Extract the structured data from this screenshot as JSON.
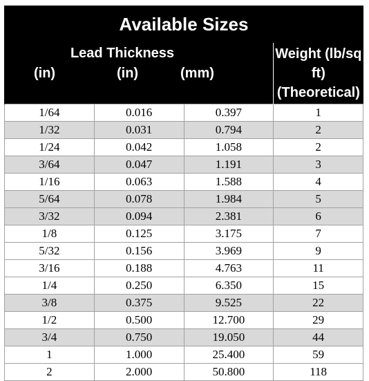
{
  "title": "Available Sizes",
  "header": {
    "group_label": "Lead Thickness",
    "col_frac": "(in)",
    "col_in": "(in)",
    "col_mm": "(mm)",
    "weight_line1": "Weight (lb/sq ft)",
    "weight_line2": "(Theoretical)"
  },
  "rows": [
    {
      "frac": "1/64",
      "inch": "0.016",
      "mm": "0.397",
      "weight": "1"
    },
    {
      "frac": "1/32",
      "inch": "0.031",
      "mm": "0.794",
      "weight": "2"
    },
    {
      "frac": "1/24",
      "inch": "0.042",
      "mm": "1.058",
      "weight": "2"
    },
    {
      "frac": "3/64",
      "inch": "0.047",
      "mm": "1.191",
      "weight": "3"
    },
    {
      "frac": "1/16",
      "inch": "0.063",
      "mm": "1.588",
      "weight": "4"
    },
    {
      "frac": "5/64",
      "inch": "0.078",
      "mm": "1.984",
      "weight": "5"
    },
    {
      "frac": "3/32",
      "inch": "0.094",
      "mm": "2.381",
      "weight": "6"
    },
    {
      "frac": "1/8",
      "inch": "0.125",
      "mm": "3.175",
      "weight": "7"
    },
    {
      "frac": "5/32",
      "inch": "0.156",
      "mm": "3.969",
      "weight": "9"
    },
    {
      "frac": "3/16",
      "inch": "0.188",
      "mm": "4.763",
      "weight": "11"
    },
    {
      "frac": "1/4",
      "inch": "0.250",
      "mm": "6.350",
      "weight": "15"
    },
    {
      "frac": "3/8",
      "inch": "0.375",
      "mm": "9.525",
      "weight": "22"
    },
    {
      "frac": "1/2",
      "inch": "0.500",
      "mm": "12.700",
      "weight": "29"
    },
    {
      "frac": "3/4",
      "inch": "0.750",
      "mm": "19.050",
      "weight": "44"
    },
    {
      "frac": "1",
      "inch": "1.000",
      "mm": "25.400",
      "weight": "59"
    },
    {
      "frac": "2",
      "inch": "2.000",
      "mm": "50.800",
      "weight": "118"
    }
  ],
  "shading": [
    false,
    true,
    false,
    true,
    false,
    true,
    true,
    false,
    false,
    false,
    false,
    true,
    false,
    true,
    false,
    false
  ],
  "colors": {
    "header_bg": "#000000",
    "header_text": "#ffffff",
    "shaded_row": "#d9d9d9",
    "grid_line": "#a0a0a0"
  }
}
